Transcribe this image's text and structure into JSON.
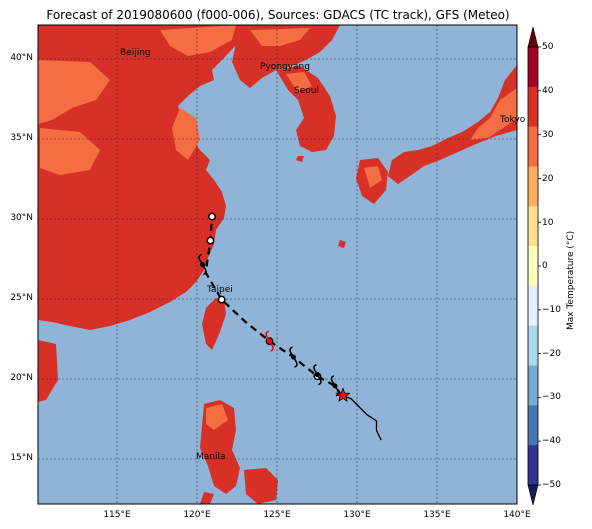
{
  "title": "Forecast of 2019080600 (f000-006), Sources: GDACS (TC track), GFS (Meteo)",
  "map": {
    "lon_range": [
      110,
      140
    ],
    "lat_range": [
      12,
      42
    ],
    "lat_labels": [
      "40°N",
      "35°N",
      "30°N",
      "25°N",
      "20°N",
      "15°N"
    ],
    "lon_labels": [
      "115°E",
      "120°E",
      "125°E",
      "130°E",
      "135°E",
      "140°E"
    ],
    "colors": {
      "ocean": "#8fb4d8",
      "land_warm": "#d73027",
      "land_hot": "#f46d43",
      "land_mild": "#fdae61",
      "grid": "#333333",
      "track": "#000000",
      "storm_marker": "#ff0000"
    },
    "cities": [
      {
        "name": "Beijing",
        "lon": 116.4,
        "lat": 39.9
      },
      {
        "name": "Pyongyang",
        "lon": 125.75,
        "lat": 39.0
      },
      {
        "name": "Seoul",
        "lon": 127.0,
        "lat": 37.5
      },
      {
        "name": "Tokyo",
        "lon": 139.7,
        "lat": 35.7
      },
      {
        "name": "Taipei",
        "lon": 121.5,
        "lat": 25.0
      },
      {
        "name": "Manila",
        "lon": 121.0,
        "lat": 14.6
      }
    ],
    "track_past": [
      [
        131.5,
        16.0
      ],
      [
        131.2,
        16.6
      ],
      [
        131.2,
        17.2
      ],
      [
        130.6,
        17.6
      ],
      [
        130.0,
        18.2
      ],
      [
        129.6,
        18.6
      ],
      [
        129.0,
        18.8
      ]
    ],
    "track_forecast": [
      [
        129.0,
        18.8
      ],
      [
        128.6,
        19.4
      ],
      [
        127.5,
        20.0
      ],
      [
        126.0,
        21.2
      ],
      [
        124.5,
        22.2
      ],
      [
        123.0,
        23.4
      ],
      [
        121.5,
        24.8
      ],
      [
        120.5,
        26.5
      ],
      [
        120.8,
        28.5
      ],
      [
        120.9,
        30.0
      ]
    ],
    "storm_icons": [
      {
        "lon": 128.6,
        "lat": 19.4,
        "type": "symbol"
      },
      {
        "lon": 127.5,
        "lat": 20.1,
        "type": "symbol"
      },
      {
        "lon": 126.0,
        "lat": 21.2,
        "type": "symbol"
      },
      {
        "lon": 124.5,
        "lat": 22.2,
        "type": "red-symbol"
      },
      {
        "lon": 120.3,
        "lat": 27.0,
        "type": "symbol"
      }
    ],
    "current_position": {
      "lon": 129.1,
      "lat": 18.8
    }
  },
  "colorbar": {
    "title": "Max Temperature (°C)",
    "levels": [
      -50,
      -40,
      -30,
      -20,
      -10,
      0,
      10,
      20,
      30,
      40,
      50
    ],
    "tick_labels": [
      "50",
      "40",
      "30",
      "20",
      "10",
      "0",
      "−10",
      "−20",
      "−30",
      "−40",
      "−50"
    ],
    "colors": [
      "#313695",
      "#4575b4",
      "#74add1",
      "#abd9e9",
      "#e0f3f8",
      "#ffffbf",
      "#fee090",
      "#fdae61",
      "#f46d43",
      "#d73027",
      "#a50026"
    ]
  }
}
